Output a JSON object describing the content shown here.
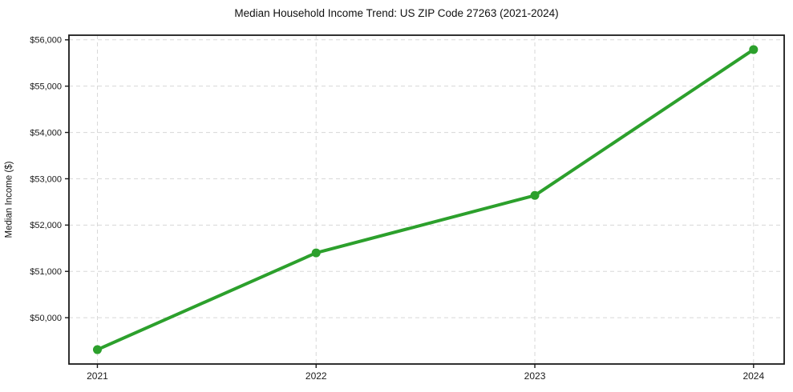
{
  "chart_data": {
    "type": "line",
    "title": "Median Household Income Trend: US ZIP Code 27263 (2021-2024)",
    "xlabel": "",
    "ylabel": "Median Income ($)",
    "x": [
      2021,
      2022,
      2023,
      2024
    ],
    "x_tick_labels": [
      "2021",
      "2022",
      "2023",
      "2024"
    ],
    "values": [
      49310,
      51400,
      52640,
      55790
    ],
    "y_ticks": [
      50000,
      51000,
      52000,
      53000,
      54000,
      55000,
      56000
    ],
    "y_tick_labels": [
      "$50,000",
      "$51,000",
      "$52,000",
      "$53,000",
      "$54,000",
      "$55,000",
      "$56,000"
    ],
    "xlim": [
      2020.87,
      2024.14
    ],
    "ylim": [
      49000,
      56100
    ],
    "grid": "dashed-both",
    "legend": "none",
    "line_color": "#2ca02c",
    "marker": "circle",
    "grid_color": "#d8d8d8",
    "axis_color": "#1a1a1a",
    "tick_label_color": "#1a1a1a",
    "background": "#ffffff"
  }
}
